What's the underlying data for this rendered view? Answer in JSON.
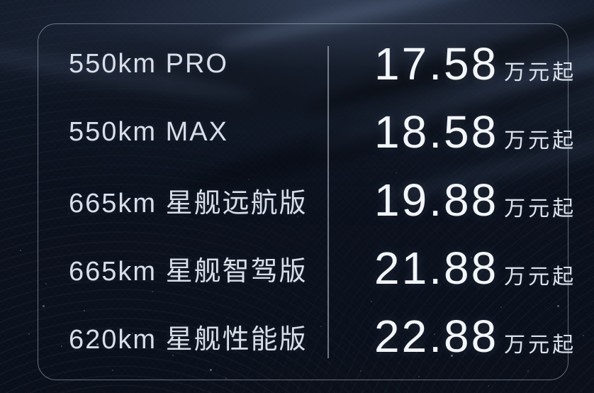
{
  "colors": {
    "background": "#0b111d",
    "frame_border": "#bcc7d8",
    "divider": "#c4cede",
    "trim_text": "#d9dee8",
    "price_text": "#f2f5fa"
  },
  "pricing": {
    "unit": "万元起",
    "rows": [
      {
        "trim": "550km PRO",
        "price": "17.58"
      },
      {
        "trim": "550km MAX",
        "price": "18.58"
      },
      {
        "trim": "665km 星舰远航版",
        "price": "19.88"
      },
      {
        "trim": "665km 星舰智驾版",
        "price": "21.88"
      },
      {
        "trim": "620km 星舰性能版",
        "price": "22.88"
      }
    ]
  }
}
